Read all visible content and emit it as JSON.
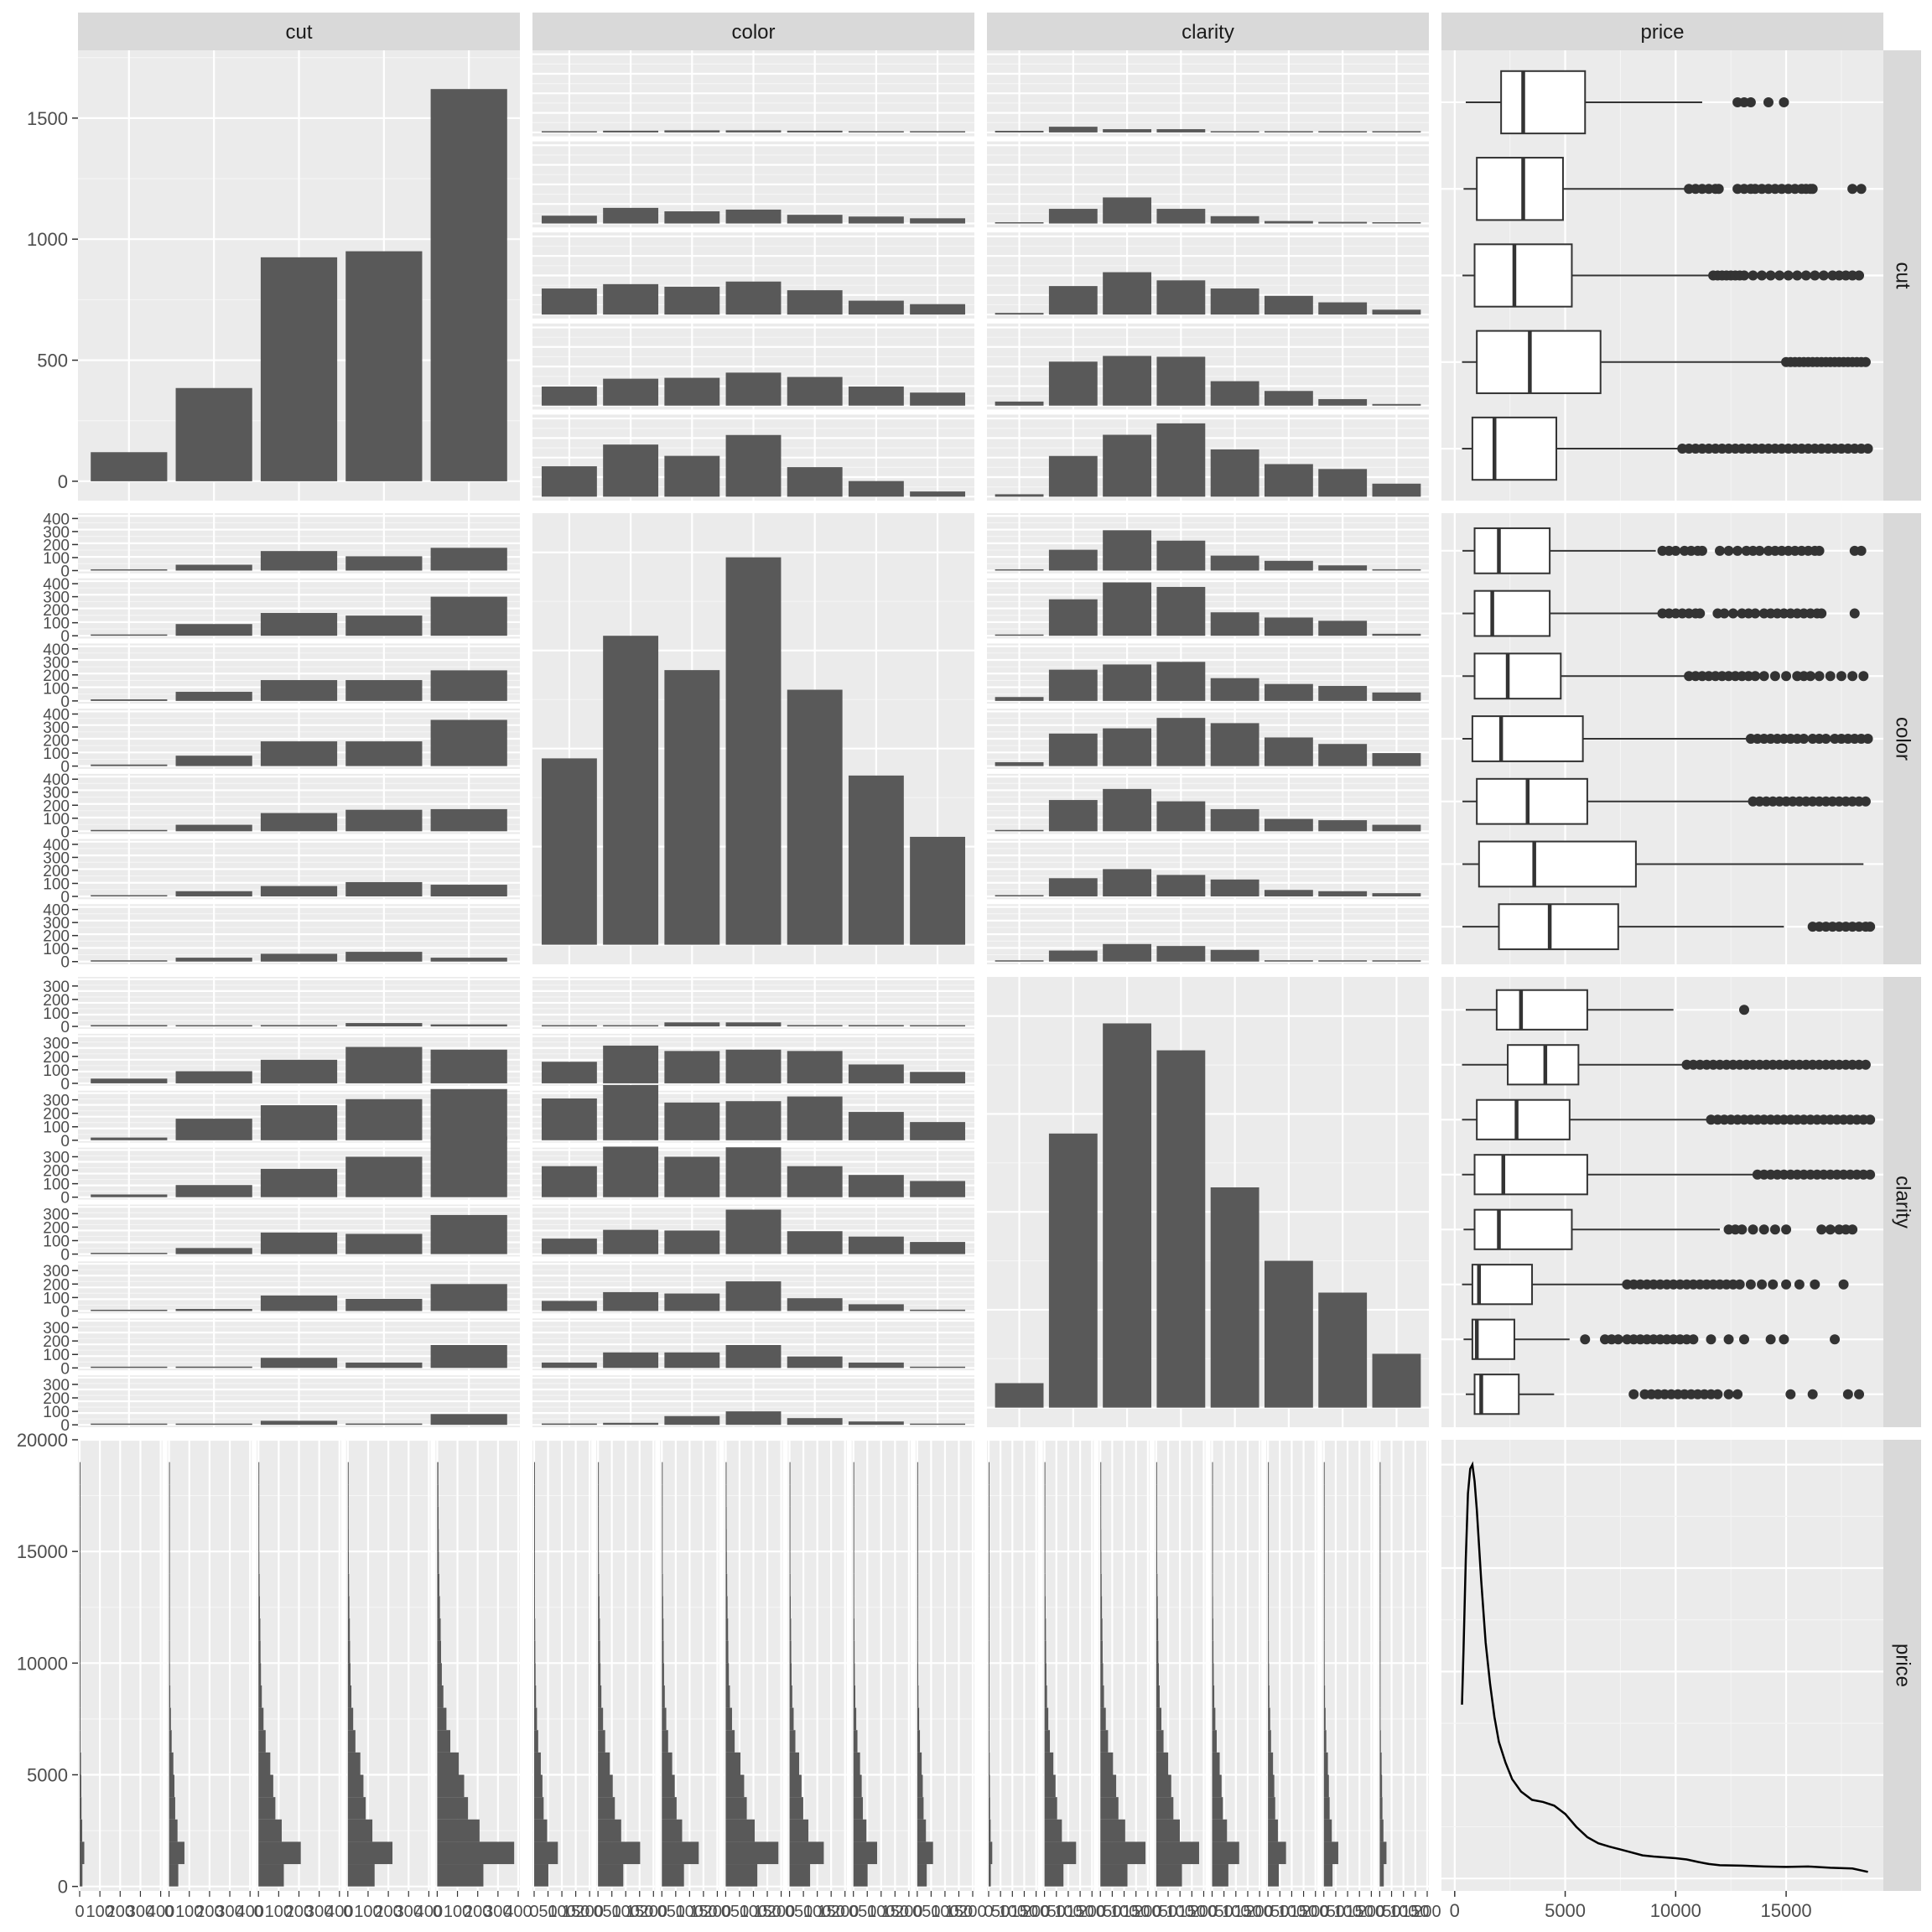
{
  "colors": {
    "panel_bg": "#EBEBEB",
    "grid_major": "#FFFFFF",
    "grid_minor": "#F5F5F5",
    "strip_bg": "#D9D9D9",
    "bar_fill": "#595959",
    "text": "#1A1A1A",
    "tick_text": "#4D4D4D",
    "axis_tick": "#333333",
    "box_fill": "#FFFFFF",
    "box_line": "#333333"
  },
  "chart_data": {
    "type": "scatterplot-matrix",
    "variables": [
      "cut",
      "color",
      "clarity",
      "price"
    ],
    "row_strips": [
      "cut",
      "color",
      "clarity",
      "price"
    ],
    "col_strips": [
      "cut",
      "color",
      "clarity",
      "price"
    ],
    "cut_levels": 5,
    "color_levels": 7,
    "clarity_levels": 8,
    "cut_counts": [
      120,
      385,
      925,
      950,
      1620
    ],
    "color_counts": [
      380,
      630,
      560,
      790,
      520,
      345,
      220
    ],
    "clarity_counts": [
      50,
      560,
      785,
      730,
      450,
      300,
      235,
      110
    ],
    "cut_axis": {
      "ticks": [
        0,
        500,
        1000,
        1500
      ],
      "ylim": [
        -80,
        1780
      ]
    },
    "color_axis": {
      "ticks": [
        0,
        100,
        200,
        300,
        400
      ]
    },
    "clarity_axis": {
      "ticks": [
        0,
        100,
        200,
        300
      ]
    },
    "price_axis": {
      "ticks": [
        0,
        5000,
        10000,
        15000,
        20000
      ],
      "lim": [
        -200,
        20000
      ],
      "xlim": [
        -600,
        19400
      ]
    },
    "cut_by_color": [
      [
        5,
        10,
        12,
        12,
        10,
        6,
        4
      ],
      [
        45,
        90,
        70,
        80,
        50,
        40,
        30
      ],
      [
        150,
        175,
        160,
        190,
        140,
        80,
        60
      ],
      [
        110,
        155,
        160,
        190,
        165,
        110,
        75
      ],
      [
        175,
        300,
        235,
        355,
        170,
        90,
        30
      ]
    ],
    "cut_by_clarity": [
      [
        10,
        35,
        20,
        20,
        5,
        0,
        0,
        0
      ],
      [
        5,
        90,
        160,
        90,
        45,
        15,
        10,
        5
      ],
      [
        10,
        175,
        260,
        210,
        160,
        115,
        75,
        30
      ],
      [
        25,
        270,
        305,
        300,
        150,
        90,
        40,
        10
      ],
      [
        15,
        250,
        380,
        450,
        290,
        200,
        170,
        80
      ]
    ],
    "color_by_clarity": [
      [
        5,
        160,
        310,
        230,
        115,
        75,
        40,
        10
      ],
      [
        5,
        280,
        410,
        375,
        180,
        140,
        115,
        15
      ],
      [
        30,
        240,
        280,
        300,
        175,
        130,
        115,
        65
      ],
      [
        30,
        250,
        290,
        370,
        330,
        220,
        170,
        100
      ],
      [
        10,
        240,
        325,
        230,
        170,
        95,
        85,
        50
      ],
      [
        10,
        140,
        210,
        165,
        130,
        50,
        40,
        25
      ],
      [
        5,
        85,
        135,
        120,
        90,
        10,
        5,
        5
      ]
    ],
    "price_box_by_cut": [
      {
        "q1": 2100,
        "median": 3100,
        "q3": 5900,
        "wlo": 500,
        "whi": 11200,
        "out": [
          12800,
          13100,
          13400,
          14200,
          14900
        ]
      },
      {
        "q1": 1000,
        "median": 3100,
        "q3": 4900,
        "wlo": 400,
        "whi": 10400,
        "out": [
          10600,
          10900,
          11200,
          11500,
          11800,
          11950,
          12800,
          13100,
          13400,
          13600,
          13900,
          14200,
          14500,
          14800,
          15100,
          15400,
          15700,
          15900,
          16100,
          16200,
          18000,
          18400
        ]
      },
      {
        "q1": 900,
        "median": 2700,
        "q3": 5300,
        "wlo": 350,
        "whi": 11500,
        "out": [
          11700,
          11900,
          12100,
          12300,
          12500,
          12700,
          12900,
          13100,
          13500,
          13900,
          14300,
          14700,
          15100,
          15500,
          15900,
          16300,
          16700,
          17100,
          17400,
          17700,
          18000,
          18300
        ]
      },
      {
        "q1": 1000,
        "median": 3400,
        "q3": 6600,
        "wlo": 330,
        "whi": 14800,
        "out": [
          15000,
          15200,
          15400,
          15600,
          15800,
          16000,
          16200,
          16400,
          16600,
          16800,
          17000,
          17200,
          17400,
          17600,
          17800,
          18000,
          18200,
          18400,
          18600
        ]
      },
      {
        "q1": 800,
        "median": 1800,
        "q3": 4600,
        "wlo": 330,
        "whi": 10100,
        "out": [
          10300,
          10600,
          10900,
          11200,
          11500,
          11800,
          12100,
          12400,
          12700,
          13000,
          13300,
          13600,
          13900,
          14200,
          14500,
          14800,
          15100,
          15400,
          15700,
          16000,
          16300,
          16600,
          16900,
          17200,
          17500,
          17800,
          18100,
          18400,
          18700
        ]
      }
    ],
    "price_box_by_color": [
      {
        "q1": 900,
        "median": 2000,
        "q3": 4300,
        "wlo": 350,
        "whi": 9100,
        "out": [
          9400,
          9700,
          10000,
          10400,
          10700,
          11000,
          11200,
          12000,
          12400,
          12800,
          13200,
          13500,
          13800,
          14200,
          14500,
          14800,
          15100,
          15400,
          15700,
          16000,
          16300,
          16500,
          18100,
          18400
        ]
      },
      {
        "q1": 900,
        "median": 1700,
        "q3": 4300,
        "wlo": 350,
        "whi": 9200,
        "out": [
          9400,
          9700,
          10000,
          10300,
          10600,
          10900,
          11100,
          11900,
          12200,
          12600,
          13000,
          13300,
          13600,
          14000,
          14300,
          14600,
          14900,
          15200,
          15500,
          15800,
          16100,
          16400,
          16600,
          18100
        ]
      },
      {
        "q1": 900,
        "median": 2400,
        "q3": 4800,
        "wlo": 350,
        "whi": 10400,
        "out": [
          10600,
          10900,
          11200,
          11500,
          11800,
          12100,
          12400,
          12700,
          13000,
          13300,
          13600,
          14000,
          14500,
          15000,
          15500,
          15800,
          16100,
          16500,
          17000,
          17500,
          18000,
          18500
        ]
      },
      {
        "q1": 800,
        "median": 2100,
        "q3": 5800,
        "wlo": 350,
        "whi": 13200,
        "out": [
          13400,
          13700,
          14000,
          14300,
          14600,
          14900,
          15200,
          15500,
          15800,
          16200,
          16500,
          16800,
          17200,
          17500,
          17800,
          18100,
          18400,
          18700
        ]
      },
      {
        "q1": 1000,
        "median": 3300,
        "q3": 6000,
        "wlo": 350,
        "whi": 13300,
        "out": [
          13500,
          13800,
          14100,
          14400,
          14700,
          15000,
          15300,
          15600,
          15900,
          16200,
          16500,
          16800,
          17100,
          17400,
          17700,
          18000,
          18300,
          18600
        ]
      },
      {
        "q1": 1100,
        "median": 3600,
        "q3": 8200,
        "wlo": 350,
        "whi": 18500,
        "out": []
      },
      {
        "q1": 2000,
        "median": 4300,
        "q3": 7400,
        "wlo": 350,
        "whi": 14900,
        "out": [
          16200,
          16500,
          16800,
          17100,
          17400,
          17700,
          18000,
          18300,
          18600,
          18800
        ]
      }
    ],
    "price_box_by_clarity": [
      {
        "q1": 1900,
        "median": 3000,
        "q3": 6000,
        "wlo": 500,
        "whi": 9900,
        "out": [
          13100
        ]
      },
      {
        "q1": 2400,
        "median": 4100,
        "q3": 5600,
        "wlo": 330,
        "whi": 10300,
        "out": [
          10500,
          10800,
          11100,
          11400,
          11700,
          12000,
          12300,
          12600,
          12900,
          13200,
          13500,
          13800,
          14100,
          14400,
          14700,
          15000,
          15300,
          15600,
          15900,
          16200,
          16500,
          16800,
          17100,
          17400,
          17700,
          18000,
          18300,
          18600
        ]
      },
      {
        "q1": 1000,
        "median": 2800,
        "q3": 5200,
        "wlo": 330,
        "whi": 11400,
        "out": [
          11600,
          11900,
          12200,
          12500,
          12800,
          13100,
          13400,
          13700,
          14000,
          14300,
          14600,
          14900,
          15200,
          15500,
          15800,
          16100,
          16400,
          16700,
          17000,
          17300,
          17600,
          17900,
          18200,
          18500,
          18800
        ]
      },
      {
        "q1": 900,
        "median": 2200,
        "q3": 6000,
        "wlo": 330,
        "whi": 13500,
        "out": [
          13700,
          14000,
          14300,
          14600,
          14900,
          15200,
          15500,
          15800,
          16100,
          16400,
          16700,
          17000,
          17300,
          17600,
          17900,
          18200,
          18500,
          18800
        ]
      },
      {
        "q1": 900,
        "median": 2000,
        "q3": 5300,
        "wlo": 400,
        "whi": 12000,
        "out": [
          12400,
          12700,
          13000,
          13500,
          14000,
          14500,
          15000,
          16600,
          17000,
          17400,
          17700,
          18000
        ]
      },
      {
        "q1": 800,
        "median": 1100,
        "q3": 3500,
        "wlo": 330,
        "whi": 7600,
        "out": [
          7800,
          8100,
          8400,
          8700,
          9000,
          9300,
          9600,
          9900,
          10200,
          10500,
          10800,
          11100,
          11400,
          11700,
          12000,
          12300,
          12600,
          12900,
          13400,
          13900,
          14400,
          15000,
          15600,
          16300,
          17600
        ]
      },
      {
        "q1": 800,
        "median": 1000,
        "q3": 2700,
        "wlo": 400,
        "whi": 5200,
        "out": [
          5900,
          6800,
          7100,
          7400,
          7800,
          8100,
          8400,
          8700,
          9000,
          9300,
          9600,
          9900,
          10200,
          10500,
          10800,
          11600,
          12400,
          13100,
          14300,
          14900,
          17200
        ]
      },
      {
        "q1": 900,
        "median": 1200,
        "q3": 2900,
        "wlo": 500,
        "whi": 4500,
        "out": [
          8100,
          8600,
          8900,
          9200,
          9500,
          9800,
          10100,
          10400,
          10700,
          11000,
          11300,
          11600,
          11900,
          12400,
          12800,
          15200,
          16200,
          17800,
          18300
        ]
      }
    ],
    "price_density": [
      [
        330,
        0.42
      ],
      [
        400,
        0.55
      ],
      [
        500,
        0.77
      ],
      [
        600,
        0.93
      ],
      [
        700,
        0.99
      ],
      [
        800,
        1.0
      ],
      [
        900,
        0.96
      ],
      [
        1000,
        0.89
      ],
      [
        1200,
        0.72
      ],
      [
        1400,
        0.57
      ],
      [
        1600,
        0.47
      ],
      [
        1800,
        0.39
      ],
      [
        2000,
        0.33
      ],
      [
        2300,
        0.28
      ],
      [
        2600,
        0.24
      ],
      [
        3000,
        0.21
      ],
      [
        3500,
        0.19
      ],
      [
        4000,
        0.185
      ],
      [
        4500,
        0.176
      ],
      [
        5000,
        0.156
      ],
      [
        5500,
        0.125
      ],
      [
        6000,
        0.1
      ],
      [
        6500,
        0.085
      ],
      [
        7000,
        0.077
      ],
      [
        7500,
        0.07
      ],
      [
        8000,
        0.063
      ],
      [
        8500,
        0.056
      ],
      [
        9000,
        0.053
      ],
      [
        9500,
        0.051
      ],
      [
        10000,
        0.049
      ],
      [
        10500,
        0.046
      ],
      [
        11000,
        0.04
      ],
      [
        11500,
        0.035
      ],
      [
        12000,
        0.032
      ],
      [
        13000,
        0.031
      ],
      [
        14000,
        0.029
      ],
      [
        15000,
        0.028
      ],
      [
        16000,
        0.029
      ],
      [
        17000,
        0.026
      ],
      [
        18000,
        0.024
      ],
      [
        18700,
        0.016
      ]
    ],
    "price_density_ylim": [
      -0.03,
      1.06
    ],
    "price_hist": {
      "bins": [
        0,
        1000,
        2000,
        3000,
        4000,
        5000,
        6000,
        7000,
        8000,
        9000,
        10000,
        11000,
        12000,
        13000,
        14000,
        15000,
        16000,
        17000,
        18000
      ],
      "shape": [
        0.6,
        1,
        0.55,
        0.4,
        0.35,
        0.28,
        0.17,
        0.12,
        0.08,
        0.06,
        0.05,
        0.045,
        0.035,
        0.028,
        0.022,
        0.02,
        0.018,
        0.016,
        0.015
      ],
      "cut_tick_labels": [
        "0",
        "100",
        "200",
        "300",
        "400"
      ],
      "color_tick_labels": [
        "0",
        "50",
        "100",
        "150",
        "200"
      ],
      "clarity_tick_labels": [
        "0",
        "50",
        "100",
        "150",
        "200"
      ]
    }
  }
}
